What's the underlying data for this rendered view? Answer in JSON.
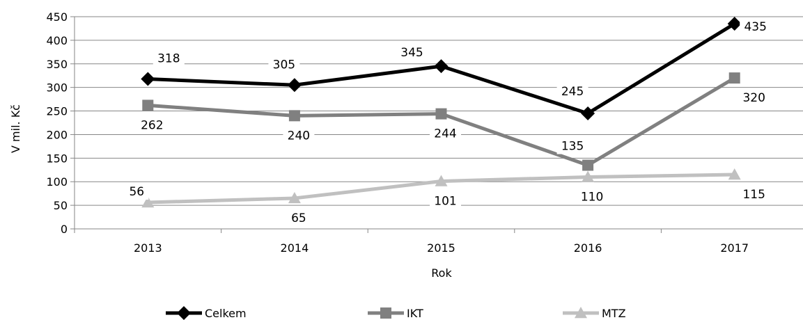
{
  "chart_data": {
    "type": "line",
    "xlabel": "Rok",
    "ylabel": "V mil. Kč",
    "ylim": [
      0,
      450
    ],
    "yticks": [
      0,
      50,
      100,
      150,
      200,
      250,
      300,
      350,
      400,
      450
    ],
    "grid": true,
    "legend_position": "bottom",
    "categories": [
      "2013",
      "2014",
      "2015",
      "2016",
      "2017"
    ],
    "series": [
      {
        "name": "Celkem",
        "values": [
          318,
          305,
          345,
          245,
          435
        ],
        "color": "#000000",
        "marker": "diamond",
        "label_offsets": "above"
      },
      {
        "name": "IKT",
        "values": [
          262,
          240,
          244,
          135,
          320
        ],
        "color": "#808080",
        "marker": "square"
      },
      {
        "name": "MTZ",
        "values": [
          56,
          65,
          101,
          110,
          115
        ],
        "color": "#c0c0c0",
        "marker": "triangle"
      }
    ]
  }
}
